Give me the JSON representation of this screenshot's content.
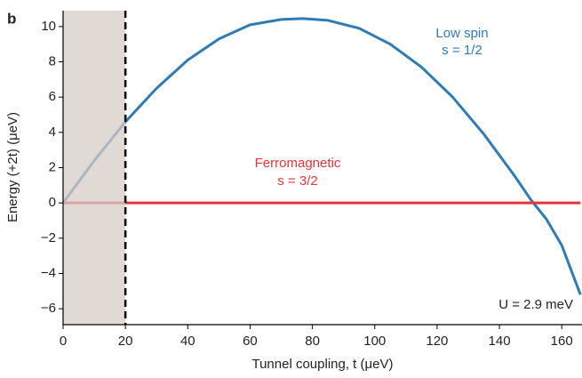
{
  "chart_data": {
    "type": "line",
    "panel_label": "b",
    "x_label": "Tunnel coupling, t (μeV)",
    "y_label": "Energy (+2t) (μeV)",
    "x": [
      0,
      10,
      20,
      30,
      40,
      50,
      60,
      70,
      77,
      85,
      95,
      105,
      115,
      125,
      135,
      145,
      150,
      155,
      160,
      166
    ],
    "series": [
      {
        "name": "Low spin",
        "color": "#2f7bb6",
        "values": [
          0,
          2.4,
          4.6,
          6.5,
          8.1,
          9.3,
          10.1,
          10.4,
          10.45,
          10.35,
          9.9,
          9.0,
          7.7,
          6.0,
          3.9,
          1.5,
          0.2,
          -0.9,
          -2.4,
          -5.2
        ]
      },
      {
        "name": "Ferromagnetic",
        "color": "#e8333a",
        "values": [
          0,
          0,
          0,
          0,
          0,
          0,
          0,
          0,
          0,
          0,
          0,
          0,
          0,
          0,
          0,
          0,
          0,
          0,
          0,
          0
        ]
      }
    ],
    "annotations": [
      "Low spin",
      "s = 1/2",
      "Ferromagnetic",
      "s = 3/2",
      "U = 2.9 meV"
    ],
    "shaded_x": [
      0,
      20
    ],
    "dashed_x": 20,
    "xlim": [
      0,
      166.5
    ],
    "ylim": [
      -6.9,
      10.9
    ],
    "xticks": [
      0,
      20,
      40,
      60,
      80,
      100,
      120,
      140,
      160
    ],
    "yticks": [
      {
        "value": -6,
        "label": "−6"
      },
      {
        "value": -4,
        "label": "−4"
      },
      {
        "value": -2,
        "label": "−2"
      },
      0,
      2,
      4,
      6,
      8,
      10
    ]
  }
}
